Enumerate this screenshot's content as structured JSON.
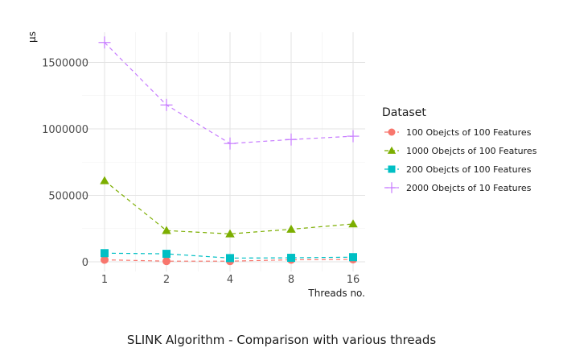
{
  "chart_data": {
    "type": "line",
    "caption": "SLINK Algorithm - Comparison with various threads",
    "xlabel": "Threads no.",
    "ylabel": "µs",
    "x": [
      "1",
      "2",
      "4",
      "8",
      "16"
    ],
    "yticks": [
      "0",
      "500000",
      "1000000",
      "1500000"
    ],
    "ylim": [
      0,
      1650000
    ],
    "grid": true,
    "legend": {
      "title": "Dataset",
      "position": "right"
    },
    "series": [
      {
        "name": "100 Obejcts of 100 Features",
        "color": "#F8766D",
        "marker": "circle",
        "values": [
          15000,
          5000,
          5000,
          15000,
          18000
        ]
      },
      {
        "name": "1000 Obejcts of 100 Features",
        "color": "#7CAE00",
        "marker": "triangle",
        "values": [
          610000,
          235000,
          210000,
          245000,
          285000
        ]
      },
      {
        "name": "200 Obejcts of 100 Features",
        "color": "#00BFC4",
        "marker": "square",
        "values": [
          65000,
          60000,
          28000,
          30000,
          35000
        ]
      },
      {
        "name": "2000 Obejcts of 10 Features",
        "color": "#C77CFF",
        "marker": "plus",
        "values": [
          1650000,
          1180000,
          890000,
          920000,
          945000
        ]
      }
    ]
  }
}
